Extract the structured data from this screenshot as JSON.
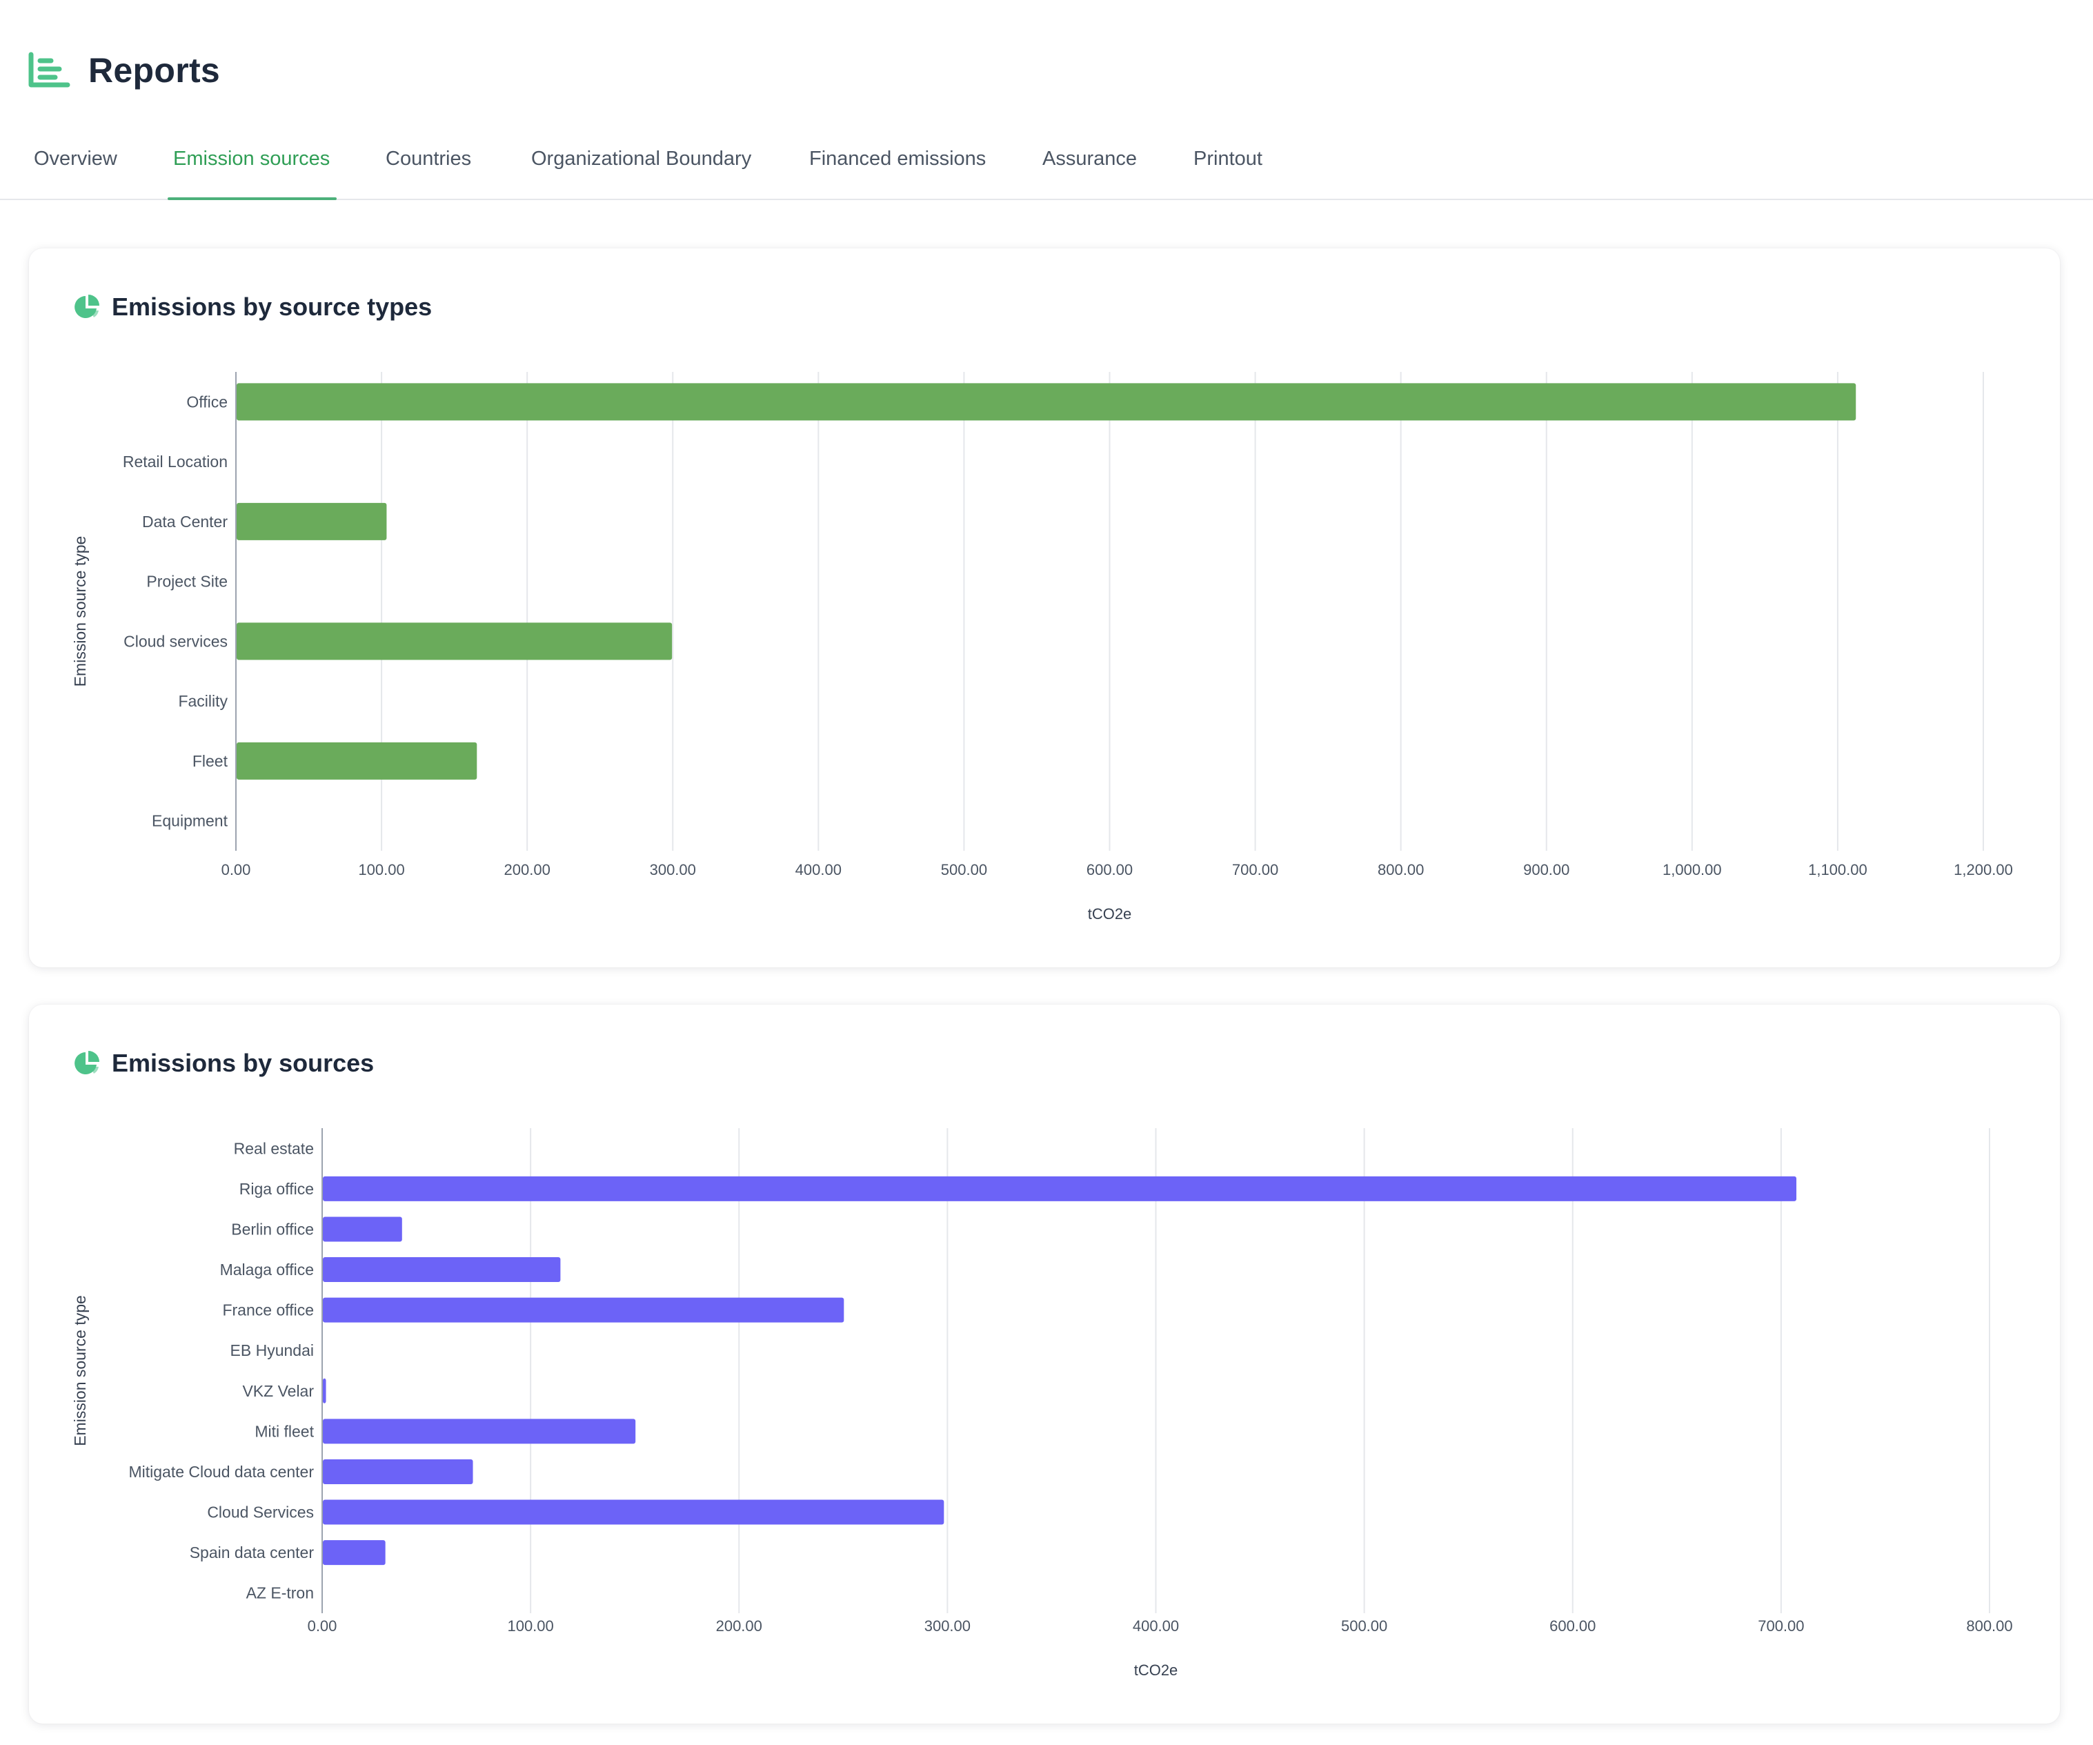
{
  "header": {
    "title": "Reports",
    "icon": "report-list-icon"
  },
  "tabs": [
    {
      "label": "Overview",
      "active": false
    },
    {
      "label": "Emission sources",
      "active": true
    },
    {
      "label": "Countries",
      "active": false
    },
    {
      "label": "Organizational Boundary",
      "active": false
    },
    {
      "label": "Financed emissions",
      "active": false
    },
    {
      "label": "Assurance",
      "active": false
    },
    {
      "label": "Printout",
      "active": false
    }
  ],
  "colors": {
    "accent": "#2f9e55",
    "bar_types": "#6aab5b",
    "bar_sources": "#6c63f7",
    "pie_icon": "#4ec38a"
  },
  "cards": [
    {
      "title": "Emissions by source types",
      "icon": "pie-chart-icon"
    },
    {
      "title": "Emissions by sources",
      "icon": "pie-chart-icon"
    }
  ],
  "chart_data": [
    {
      "type": "bar",
      "orientation": "horizontal",
      "title": "Emissions by source types",
      "categories": [
        "Office",
        "Retail Location",
        "Data Center",
        "Project Site",
        "Cloud services",
        "Facility",
        "Fleet",
        "Equipment"
      ],
      "values": [
        1112,
        0,
        103,
        0,
        299,
        0,
        165,
        0
      ],
      "xlabel": "tCO2e",
      "ylabel": "Emission source type",
      "xlim": [
        0,
        1200
      ],
      "xticks": [
        "0.00",
        "100.00",
        "200.00",
        "300.00",
        "400.00",
        "500.00",
        "600.00",
        "700.00",
        "800.00",
        "900.00",
        "1,000.00",
        "1,100.00",
        "1,200.00"
      ],
      "grid": true,
      "color": "#6aab5b"
    },
    {
      "type": "bar",
      "orientation": "horizontal",
      "title": "Emissions by sources",
      "categories": [
        "Real estate",
        "Riga office",
        "Berlin office",
        "Malaga office",
        "France office",
        "EB Hyundai",
        "VKZ Velar",
        "Miti fleet",
        "Mitigate Cloud data center",
        "Cloud Services",
        "Spain data center",
        "AZ E-tron"
      ],
      "values": [
        0,
        707,
        38,
        114,
        250,
        0,
        1.5,
        150,
        72,
        298,
        30,
        0
      ],
      "xlabel": "tCO2e",
      "ylabel": "Emission source type",
      "xlim": [
        0,
        800
      ],
      "xticks": [
        "0.00",
        "100.00",
        "200.00",
        "300.00",
        "400.00",
        "500.00",
        "600.00",
        "700.00",
        "800.00"
      ],
      "grid": true,
      "color": "#6c63f7"
    }
  ]
}
